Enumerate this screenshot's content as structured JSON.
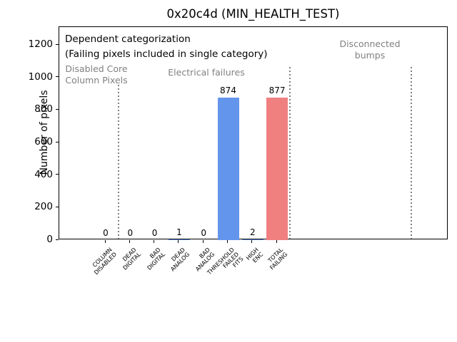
{
  "chart_data": {
    "type": "bar",
    "title": "0x20c4d (MIN_HEALTH_TEST)",
    "ylabel": "Number of pixels",
    "categories": [
      "COLUMN\nDISABLED",
      "DEAD\nDIGITAL",
      "BAD\nDIGITAL",
      "DEAD\nANALOG",
      "BAD\nANALOG",
      "THRESHOLD\nFAILED\nFITS",
      "HIGH\nENC",
      "TOTAL\nFAILING"
    ],
    "values": [
      0,
      0,
      0,
      1,
      0,
      874,
      2,
      877
    ],
    "value_labels": [
      "0",
      "0",
      "0",
      "1",
      "0",
      "874",
      "2",
      "877"
    ],
    "bar_colors": [
      "#6495ed",
      "#6495ed",
      "#6495ed",
      "#6495ed",
      "#6495ed",
      "#6495ed",
      "#6495ed",
      "#f08080"
    ],
    "yticks": [
      0,
      200,
      400,
      600,
      800,
      1000,
      1200
    ],
    "ylim": [
      0,
      1310
    ],
    "grid": false,
    "legend": null,
    "annotations": {
      "note": "Dependent categorization\n(Failing pixels included in single category)",
      "sections": [
        {
          "label": "Disabled Core\nColumn Pixels"
        },
        {
          "label": "Electrical failures"
        },
        {
          "label": "Disconnected\nbumps"
        }
      ]
    },
    "colors": {
      "bar_blue": "#6495ed",
      "bar_red": "#f08080",
      "section_text": "#808080",
      "separator": "#808080",
      "axis": "#000000"
    }
  }
}
